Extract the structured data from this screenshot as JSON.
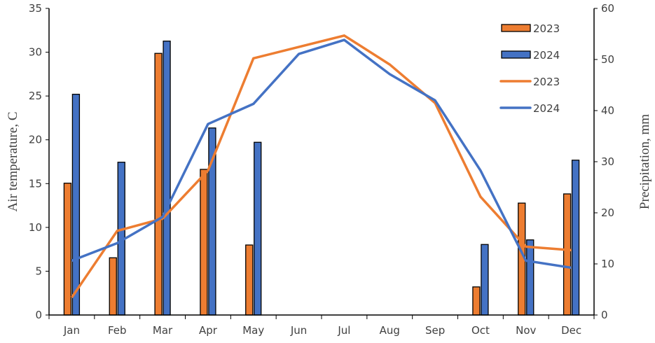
{
  "chart_data": {
    "type": "bar+line",
    "categories": [
      "Jan",
      "Feb",
      "Mar",
      "Apr",
      "May",
      "Jun",
      "Jul",
      "Aug",
      "Sep",
      "Oct",
      "Nov",
      "Dec"
    ],
    "left_axis": {
      "label": "Air temperature, C",
      "ylim": [
        0,
        35
      ],
      "ticks": [
        0,
        5,
        10,
        15,
        20,
        25,
        30,
        35
      ]
    },
    "right_axis": {
      "label": "Precipitation, mm",
      "ylim": [
        0,
        60
      ],
      "ticks": [
        0,
        10,
        20,
        30,
        40,
        50,
        60
      ]
    },
    "bar_series": [
      {
        "name": "2023",
        "axis": "right",
        "color": "#ED7D31",
        "values": [
          25.8,
          11.2,
          51.2,
          28.5,
          13.7,
          0,
          0,
          0,
          0,
          5.5,
          21.9,
          23.7
        ]
      },
      {
        "name": "2024",
        "axis": "right",
        "color": "#4472C4",
        "values": [
          43.2,
          29.9,
          53.6,
          36.6,
          33.8,
          0,
          0,
          0,
          0,
          13.8,
          14.7,
          30.3
        ]
      }
    ],
    "line_series": [
      {
        "name": "2023",
        "axis": "left",
        "color": "#ED7D31",
        "values": [
          2.0,
          9.6,
          11.0,
          16.5,
          29.3,
          30.6,
          31.9,
          28.6,
          24.2,
          13.5,
          7.8,
          7.4
        ]
      },
      {
        "name": "2024",
        "axis": "left",
        "color": "#4472C4",
        "values": [
          6.2,
          8.2,
          11.2,
          21.8,
          24.1,
          29.8,
          31.4,
          27.5,
          24.5,
          16.5,
          6.2,
          5.4
        ]
      }
    ],
    "legend_position": "top-right",
    "grid": false
  }
}
